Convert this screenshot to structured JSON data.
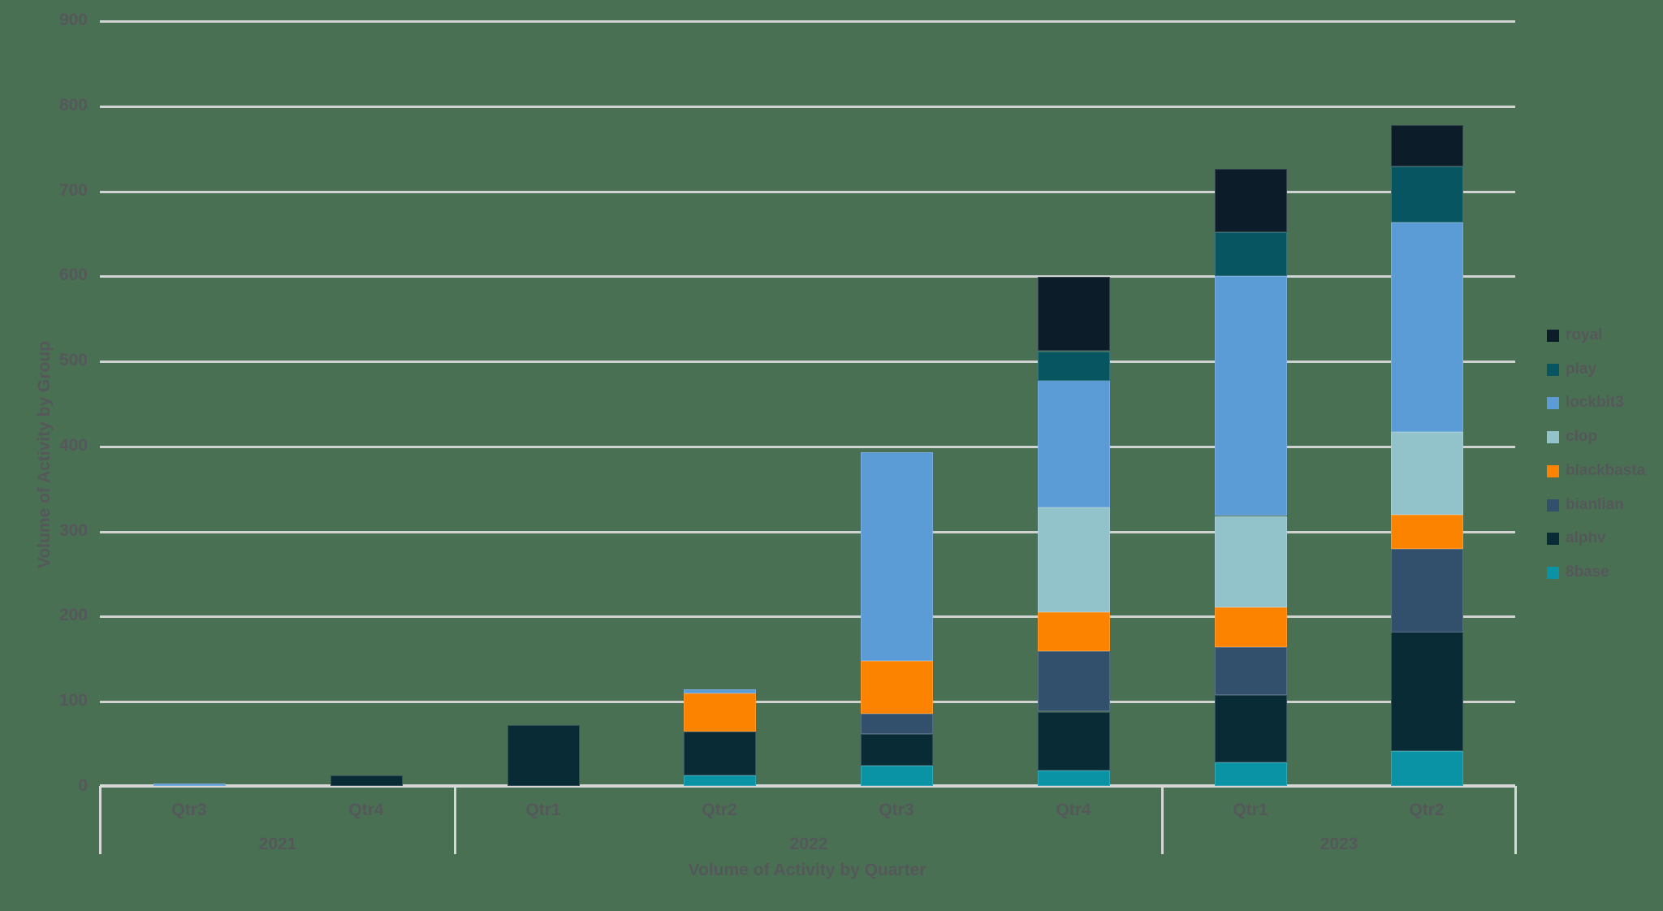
{
  "chart_data": {
    "type": "bar",
    "variant": "stacked-vertical",
    "title": "",
    "xlabel": "Volume of Activity by Quarter",
    "ylabel": "Volume of Activity by Group",
    "ylim": [
      0,
      900
    ],
    "yticks": [
      0,
      100,
      200,
      300,
      400,
      500,
      600,
      700,
      800,
      900
    ],
    "grid": "horizontal",
    "legend_position": "right",
    "colors": {
      "background": "#4a7053",
      "gridline": "#ced3d1",
      "axis": "#d4d9d7",
      "text": "#55585a"
    },
    "year_groups": [
      {
        "year": "2021",
        "quarters": [
          "Qtr3",
          "Qtr4"
        ]
      },
      {
        "year": "2022",
        "quarters": [
          "Qtr1",
          "Qtr2",
          "Qtr3",
          "Qtr4"
        ]
      },
      {
        "year": "2023",
        "quarters": [
          "Qtr1",
          "Qtr2"
        ]
      }
    ],
    "categories": [
      "Qtr3 2021",
      "Qtr4 2021",
      "Qtr1 2022",
      "Qtr2 2022",
      "Qtr3 2022",
      "Qtr4 2022",
      "Qtr1 2023",
      "Qtr2 2023"
    ],
    "stack_order_bottom_to_top": [
      "8base",
      "alphv",
      "bianlian",
      "blackbasta",
      "clop",
      "lockbit3",
      "play",
      "royal"
    ],
    "legend_order": [
      "royal",
      "play",
      "lockbit3",
      "clop",
      "blackbasta",
      "bianlian",
      "alphv",
      "8base"
    ],
    "series": [
      {
        "name": "royal",
        "color": "#0c1d29",
        "values": [
          0,
          0,
          0,
          0,
          0,
          87,
          74,
          49
        ]
      },
      {
        "name": "play",
        "color": "#065560",
        "values": [
          0,
          0,
          0,
          0,
          0,
          34,
          52,
          66
        ]
      },
      {
        "name": "lockbit3",
        "color": "#5c9cd6",
        "values": [
          3,
          0,
          0,
          5,
          245,
          150,
          282,
          246
        ]
      },
      {
        "name": "clop",
        "color": "#92c2ca",
        "values": [
          0,
          0,
          0,
          0,
          0,
          123,
          107,
          97
        ]
      },
      {
        "name": "blackbasta",
        "color": "#fb8300",
        "values": [
          0,
          0,
          0,
          45,
          62,
          46,
          47,
          40
        ]
      },
      {
        "name": "bianlian",
        "color": "#32506b",
        "values": [
          0,
          0,
          0,
          0,
          24,
          71,
          56,
          98
        ]
      },
      {
        "name": "alphv",
        "color": "#092b35",
        "values": [
          0,
          12,
          72,
          52,
          37,
          69,
          79,
          140
        ]
      },
      {
        "name": "8base",
        "color": "#0a93a5",
        "values": [
          0,
          0,
          0,
          12,
          24,
          18,
          28,
          41
        ]
      }
    ],
    "totals": [
      3,
      12,
      72,
      114,
      392,
      598,
      725,
      777
    ]
  }
}
